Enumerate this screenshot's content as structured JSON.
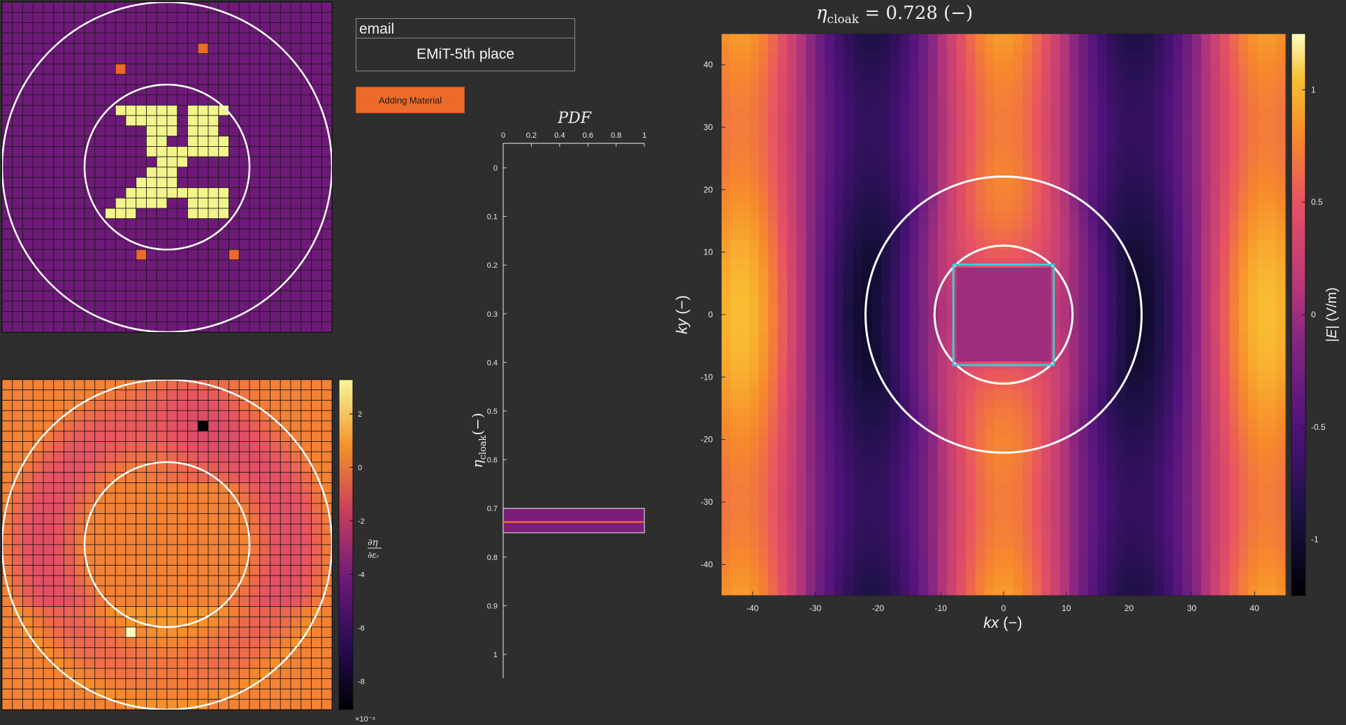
{
  "email_panel": {
    "label": "email",
    "value": "EMiT-5th place"
  },
  "controls": {
    "add_material_label": "Adding Material"
  },
  "colors": {
    "background": "#2e2e2e",
    "design_base": "#6e1a79",
    "design_material": "#f4f48c",
    "design_candidate": "#ec6a2a",
    "gradient_base": "#f3922a",
    "cloak_box": "#3ecbd9",
    "pdf_bar": "#7a1c78",
    "pdf_line": "#ec6a2a"
  },
  "design_map": {
    "grid_n": 32,
    "material_cells": [
      [
        11,
        10
      ],
      [
        12,
        10
      ],
      [
        13,
        10
      ],
      [
        14,
        10
      ],
      [
        15,
        10
      ],
      [
        16,
        10
      ],
      [
        18,
        10
      ],
      [
        19,
        10
      ],
      [
        20,
        10
      ],
      [
        21,
        10
      ],
      [
        12,
        11
      ],
      [
        13,
        11
      ],
      [
        14,
        11
      ],
      [
        15,
        11
      ],
      [
        16,
        11
      ],
      [
        18,
        11
      ],
      [
        19,
        11
      ],
      [
        20,
        11
      ],
      [
        14,
        12
      ],
      [
        15,
        12
      ],
      [
        16,
        12
      ],
      [
        18,
        12
      ],
      [
        19,
        12
      ],
      [
        20,
        12
      ],
      [
        14,
        13
      ],
      [
        15,
        13
      ],
      [
        18,
        13
      ],
      [
        19,
        13
      ],
      [
        20,
        13
      ],
      [
        21,
        13
      ],
      [
        14,
        14
      ],
      [
        15,
        14
      ],
      [
        16,
        14
      ],
      [
        17,
        14
      ],
      [
        18,
        14
      ],
      [
        19,
        14
      ],
      [
        20,
        14
      ],
      [
        21,
        14
      ],
      [
        15,
        15
      ],
      [
        16,
        15
      ],
      [
        17,
        15
      ],
      [
        14,
        16
      ],
      [
        15,
        16
      ],
      [
        16,
        16
      ],
      [
        13,
        17
      ],
      [
        14,
        17
      ],
      [
        15,
        17
      ],
      [
        16,
        17
      ],
      [
        12,
        18
      ],
      [
        13,
        18
      ],
      [
        14,
        18
      ],
      [
        15,
        18
      ],
      [
        16,
        18
      ],
      [
        17,
        18
      ],
      [
        18,
        18
      ],
      [
        19,
        18
      ],
      [
        20,
        18
      ],
      [
        21,
        18
      ],
      [
        11,
        19
      ],
      [
        12,
        19
      ],
      [
        13,
        19
      ],
      [
        14,
        19
      ],
      [
        15,
        19
      ],
      [
        18,
        19
      ],
      [
        19,
        19
      ],
      [
        20,
        19
      ],
      [
        21,
        19
      ],
      [
        10,
        20
      ],
      [
        11,
        20
      ],
      [
        12,
        20
      ],
      [
        18,
        20
      ],
      [
        19,
        20
      ],
      [
        20,
        20
      ],
      [
        21,
        20
      ]
    ],
    "candidate_cells": [
      [
        19,
        4
      ],
      [
        11,
        6
      ],
      [
        13,
        24
      ],
      [
        22,
        24
      ]
    ]
  },
  "gradient_map": {
    "grid_n": 32,
    "colorbar": {
      "ticks": [
        "2",
        "0",
        "-2",
        "-4",
        "-6",
        "-8"
      ],
      "multiplier": "×10⁻⁴",
      "label": "∂η / ∂εr"
    }
  },
  "pdf_chart": {
    "title": "PDF",
    "xticks": [
      "0",
      "0.2",
      "0.4",
      "0.6",
      "0.8",
      "1"
    ],
    "yticks": [
      "0",
      "0.1",
      "0.2",
      "0.3",
      "0.4",
      "0.5",
      "0.6",
      "0.7",
      "0.8",
      "0.9",
      "1"
    ],
    "ylabel": "η",
    "ylabel_sub": "cloak",
    "ylabel_unit": "(−)"
  },
  "field_title": {
    "eta": "η",
    "sub": "cloak",
    "rest": " = 0.728 (−)"
  },
  "chart_data": [
    {
      "type": "bar",
      "title": "PDF",
      "orientation": "horizontal",
      "xlim": [
        0,
        1
      ],
      "ylim": [
        0,
        1
      ],
      "bar_y_range": [
        0.7,
        0.75
      ],
      "bar_x_extent": 1,
      "marker_y": 0.728
    },
    {
      "type": "heatmap",
      "title": "η_cloak = 0.728 (−)",
      "xlabel": "kx (−)",
      "ylabel": "ky (−)",
      "xlim": [
        -45,
        45
      ],
      "ylim": [
        -45,
        45
      ],
      "xticks": [
        "-40",
        "-30",
        "-20",
        "-10",
        "0",
        "10",
        "20",
        "30",
        "40"
      ],
      "yticks": [
        "40",
        "30",
        "20",
        "10",
        "0",
        "-10",
        "-20",
        "-30",
        "-40"
      ],
      "colorbar": {
        "ticks": [
          "1",
          "0.5",
          "0",
          "-0.5",
          "-1"
        ],
        "label": "|E| (V/m)"
      },
      "annotations": {
        "inner_circle_radius": 11,
        "outer_circle_radius": 22,
        "cloak_square": [
          -8,
          8
        ]
      }
    }
  ]
}
